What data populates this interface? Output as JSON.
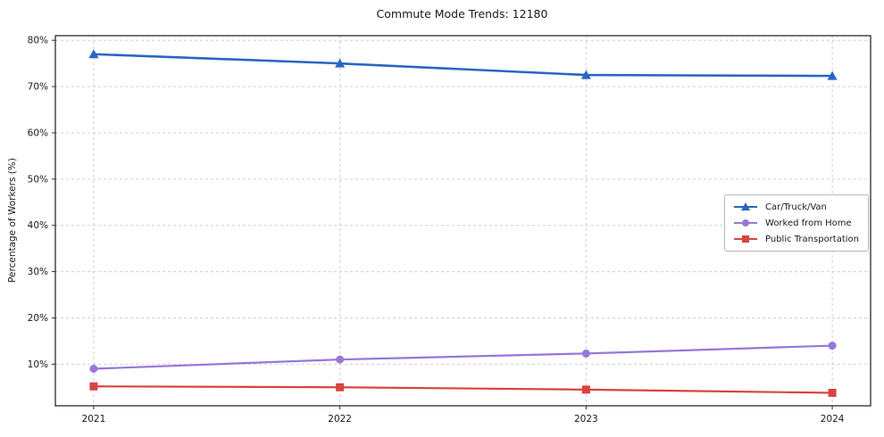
{
  "chart_data": {
    "type": "line",
    "title": "Commute Mode Trends: 12180",
    "xlabel": "",
    "ylabel": "Percentage of Workers (%)",
    "categories": [
      "2021",
      "2022",
      "2023",
      "2024"
    ],
    "series": [
      {
        "name": "Car/Truck/Van",
        "marker": "triangle",
        "color": "#2a66c2",
        "line_width": 2.6,
        "values": [
          77,
          75,
          72.5,
          72.3
        ]
      },
      {
        "name": "Worked from Home",
        "marker": "circle",
        "color": "#9877d9",
        "line_width": 2.2,
        "values": [
          9,
          11,
          12.3,
          14
        ]
      },
      {
        "name": "Public Transportation",
        "marker": "square",
        "color": "#d9443f",
        "line_width": 2.2,
        "values": [
          5.2,
          5,
          4.5,
          3.8
        ]
      }
    ],
    "ylim": [
      1,
      81
    ],
    "yticks": [
      10,
      20,
      30,
      40,
      50,
      60,
      70,
      80
    ],
    "ytick_suffix": "%",
    "grid": true,
    "grid_style": "dashed",
    "legend_position": "center right"
  },
  "style": {
    "grid_color": "#cfcfcf",
    "spine_color": "#2b2b2b",
    "tick_label_color": "#1a1a1a"
  }
}
